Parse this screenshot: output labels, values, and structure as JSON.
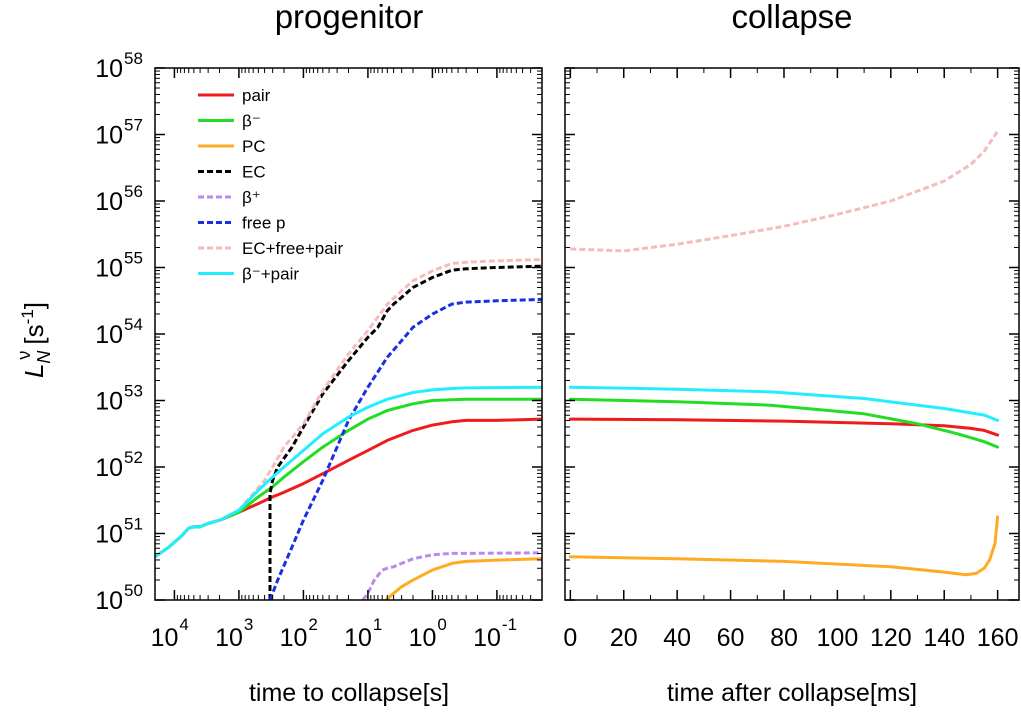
{
  "chart_data": [
    {
      "type": "line",
      "title": "progenitor",
      "xlabel": "time to collapse[s]",
      "ylabel": "L_N^ν [s^-1]",
      "ylabel_parts": {
        "L": "L",
        "sub": "N",
        "sup": "ν",
        "unit_open": "[s",
        "unit_exp": "-1",
        "unit_close": "]"
      },
      "xscale": "log-reversed",
      "xlim": [
        20000,
        0.02
      ],
      "yscale": "log",
      "ylim": [
        1e+50,
        1e+58
      ],
      "x_ticks": [
        {
          "value": 10000,
          "base": "10",
          "exp": "4"
        },
        {
          "value": 1000,
          "base": "10",
          "exp": "3"
        },
        {
          "value": 100,
          "base": "10",
          "exp": "2"
        },
        {
          "value": 10,
          "base": "10",
          "exp": "1"
        },
        {
          "value": 1,
          "base": "10",
          "exp": "0"
        },
        {
          "value": 0.1,
          "base": "10",
          "exp": "-1"
        }
      ],
      "y_ticks": [
        {
          "value": 1e+50,
          "base": "10",
          "exp": "50"
        },
        {
          "value": 1e+51,
          "base": "10",
          "exp": "51"
        },
        {
          "value": 1e+52,
          "base": "10",
          "exp": "52"
        },
        {
          "value": 1e+53,
          "base": "10",
          "exp": "53"
        },
        {
          "value": 1e+54,
          "base": "10",
          "exp": "54"
        },
        {
          "value": 1e+55,
          "base": "10",
          "exp": "55"
        },
        {
          "value": 1e+56,
          "base": "10",
          "exp": "56"
        },
        {
          "value": 1e+57,
          "base": "10",
          "exp": "57"
        },
        {
          "value": 1e+58,
          "base": "10",
          "exp": "58"
        }
      ],
      "legend_placement": "top-left",
      "series": [
        {
          "name": "pair",
          "key": "pair",
          "color": "#ee1c1c",
          "dashed": false,
          "points": [
            [
              20000,
              50.65
            ],
            [
              12000,
              50.8
            ],
            [
              8000,
              50.95
            ],
            [
              6000,
              51.08
            ],
            [
              5000,
              51.1
            ],
            [
              4000,
              51.1
            ],
            [
              3000,
              51.15
            ],
            [
              2000,
              51.2
            ],
            [
              1000,
              51.32
            ],
            [
              500,
              51.45
            ],
            [
              300,
              51.55
            ],
            [
              200,
              51.62
            ],
            [
              100,
              51.75
            ],
            [
              50,
              51.9
            ],
            [
              20,
              52.1
            ],
            [
              10,
              52.25
            ],
            [
              5,
              52.4
            ],
            [
              2,
              52.55
            ],
            [
              1,
              52.63
            ],
            [
              0.5,
              52.68
            ],
            [
              0.3,
              52.7
            ],
            [
              0.1,
              52.7
            ],
            [
              0.02,
              52.72
            ]
          ]
        },
        {
          "name": "β⁻",
          "key": "beta_minus",
          "color": "#22dd22",
          "dashed": false,
          "points": [
            [
              20000,
              50.65
            ],
            [
              12000,
              50.8
            ],
            [
              8000,
              50.95
            ],
            [
              6000,
              51.08
            ],
            [
              5000,
              51.1
            ],
            [
              4000,
              51.1
            ],
            [
              3000,
              51.15
            ],
            [
              2000,
              51.2
            ],
            [
              1000,
              51.32
            ],
            [
              500,
              51.55
            ],
            [
              300,
              51.7
            ],
            [
              200,
              51.85
            ],
            [
              100,
              52.08
            ],
            [
              50,
              52.3
            ],
            [
              20,
              52.55
            ],
            [
              10,
              52.72
            ],
            [
              5,
              52.85
            ],
            [
              2,
              52.95
            ],
            [
              1,
              53.0
            ],
            [
              0.5,
              53.01
            ],
            [
              0.3,
              53.02
            ],
            [
              0.02,
              53.02
            ]
          ]
        },
        {
          "name": "PC",
          "key": "pc",
          "color": "#ffaa22",
          "dashed": false,
          "points": [
            [
              5.5,
              49.98
            ],
            [
              4,
              50.1
            ],
            [
              3,
              50.2
            ],
            [
              2,
              50.3
            ],
            [
              1,
              50.45
            ],
            [
              0.5,
              50.55
            ],
            [
              0.3,
              50.58
            ],
            [
              0.1,
              50.6
            ],
            [
              0.02,
              50.62
            ]
          ]
        },
        {
          "name": "EC",
          "key": "ec",
          "color": "#000000",
          "dashed": true,
          "points": [
            [
              330,
              50.0
            ],
            [
              330,
              51.6
            ],
            [
              300,
              51.8
            ],
            [
              250,
              52.0
            ],
            [
              150,
              52.3
            ],
            [
              100,
              52.6
            ],
            [
              50,
              53.1
            ],
            [
              20,
              53.6
            ],
            [
              10,
              53.95
            ],
            [
              7,
              54.1
            ],
            [
              5,
              54.35
            ],
            [
              4,
              54.45
            ],
            [
              3,
              54.55
            ],
            [
              2,
              54.7
            ],
            [
              1,
              54.85
            ],
            [
              0.5,
              54.96
            ],
            [
              0.3,
              54.98
            ],
            [
              0.1,
              55.0
            ],
            [
              0.02,
              55.02
            ]
          ]
        },
        {
          "name": "β⁺",
          "key": "beta_plus",
          "color": "#bb88ee",
          "dashed": true,
          "points": [
            [
              12,
              50.0
            ],
            [
              10,
              50.1
            ],
            [
              8,
              50.3
            ],
            [
              6,
              50.45
            ],
            [
              5,
              50.48
            ],
            [
              4,
              50.5
            ],
            [
              3,
              50.55
            ],
            [
              2,
              50.62
            ],
            [
              1,
              50.68
            ],
            [
              0.5,
              50.7
            ],
            [
              0.3,
              50.7
            ],
            [
              0.02,
              50.71
            ]
          ]
        },
        {
          "name": "free p",
          "key": "free_p",
          "color": "#1a2ee6",
          "dashed": true,
          "points": [
            [
              330,
              50.0
            ],
            [
              250,
              50.3
            ],
            [
              150,
              50.8
            ],
            [
              100,
              51.2
            ],
            [
              50,
              51.8
            ],
            [
              20,
              52.7
            ],
            [
              10,
              53.2
            ],
            [
              5,
              53.65
            ],
            [
              3,
              53.9
            ],
            [
              2,
              54.1
            ],
            [
              1,
              54.3
            ],
            [
              0.5,
              54.45
            ],
            [
              0.3,
              54.48
            ],
            [
              0.1,
              54.5
            ],
            [
              0.02,
              54.52
            ]
          ]
        },
        {
          "name": "EC+free+pair",
          "key": "ec_free_pair",
          "color": "#f6bcbc",
          "dashed": true,
          "points": [
            [
              1000,
              51.35
            ],
            [
              600,
              51.6
            ],
            [
              400,
              51.8
            ],
            [
              300,
              52.0
            ],
            [
              200,
              52.3
            ],
            [
              100,
              52.65
            ],
            [
              50,
              53.15
            ],
            [
              20,
              53.7
            ],
            [
              10,
              54.05
            ],
            [
              5,
              54.45
            ],
            [
              3,
              54.65
            ],
            [
              2,
              54.8
            ],
            [
              1,
              54.95
            ],
            [
              0.5,
              55.06
            ],
            [
              0.3,
              55.08
            ],
            [
              0.1,
              55.1
            ],
            [
              0.02,
              55.12
            ]
          ]
        },
        {
          "name": "β⁻+pair",
          "key": "beta_minus_pair",
          "color": "#22eeff",
          "dashed": false,
          "points": [
            [
              20000,
              50.65
            ],
            [
              12000,
              50.8
            ],
            [
              8000,
              50.95
            ],
            [
              6000,
              51.08
            ],
            [
              5000,
              51.1
            ],
            [
              4000,
              51.1
            ],
            [
              3000,
              51.15
            ],
            [
              2000,
              51.2
            ],
            [
              1000,
              51.35
            ],
            [
              500,
              51.65
            ],
            [
              300,
              51.85
            ],
            [
              200,
              52.0
            ],
            [
              100,
              52.25
            ],
            [
              50,
              52.5
            ],
            [
              20,
              52.75
            ],
            [
              10,
              52.9
            ],
            [
              5,
              53.02
            ],
            [
              2,
              53.12
            ],
            [
              1,
              53.16
            ],
            [
              0.5,
              53.18
            ],
            [
              0.3,
              53.19
            ],
            [
              0.02,
              53.2
            ]
          ]
        }
      ]
    },
    {
      "type": "line",
      "title": "collapse",
      "xlabel": "time after collapse[ms]",
      "xscale": "linear",
      "xlim": [
        -2,
        168
      ],
      "yscale": "log",
      "ylim": [
        1e+50,
        1e+58
      ],
      "x_ticks": [
        {
          "value": 0,
          "label": "0"
        },
        {
          "value": 20,
          "label": "20"
        },
        {
          "value": 40,
          "label": "40"
        },
        {
          "value": 60,
          "label": "60"
        },
        {
          "value": 80,
          "label": "80"
        },
        {
          "value": 100,
          "label": "100"
        },
        {
          "value": 120,
          "label": "120"
        },
        {
          "value": 140,
          "label": "140"
        },
        {
          "value": 160,
          "label": "160"
        }
      ],
      "series": [
        {
          "name": "pair",
          "key": "pair",
          "color": "#ee1c1c",
          "dashed": false,
          "points": [
            [
              0,
              52.72
            ],
            [
              40,
              52.71
            ],
            [
              80,
              52.69
            ],
            [
              120,
              52.65
            ],
            [
              140,
              52.62
            ],
            [
              150,
              52.58
            ],
            [
              155,
              52.55
            ],
            [
              160,
              52.48
            ]
          ]
        },
        {
          "name": "β⁻",
          "key": "beta_minus",
          "color": "#22dd22",
          "dashed": false,
          "points": [
            [
              0,
              53.02
            ],
            [
              40,
              52.98
            ],
            [
              75,
              52.93
            ],
            [
              110,
              52.8
            ],
            [
              130,
              52.65
            ],
            [
              145,
              52.5
            ],
            [
              155,
              52.38
            ],
            [
              160,
              52.3
            ]
          ]
        },
        {
          "name": "PC",
          "key": "pc",
          "color": "#ffaa22",
          "dashed": false,
          "points": [
            [
              0,
              50.65
            ],
            [
              40,
              50.62
            ],
            [
              80,
              50.58
            ],
            [
              120,
              50.5
            ],
            [
              140,
              50.42
            ],
            [
              148,
              50.38
            ],
            [
              152,
              50.4
            ],
            [
              155,
              50.48
            ],
            [
              157,
              50.6
            ],
            [
              159,
              50.85
            ],
            [
              160,
              51.25
            ]
          ]
        },
        {
          "name": "EC+free+pair",
          "key": "ec_free_pair",
          "color": "#f6bcbc",
          "dashed": true,
          "points": [
            [
              0,
              55.28
            ],
            [
              20,
              55.25
            ],
            [
              40,
              55.35
            ],
            [
              60,
              55.48
            ],
            [
              80,
              55.62
            ],
            [
              100,
              55.8
            ],
            [
              120,
              56.0
            ],
            [
              140,
              56.3
            ],
            [
              150,
              56.55
            ],
            [
              155,
              56.75
            ],
            [
              160,
              57.05
            ]
          ]
        },
        {
          "name": "β⁻+pair",
          "key": "beta_minus_pair",
          "color": "#22eeff",
          "dashed": false,
          "points": [
            [
              0,
              53.2
            ],
            [
              40,
              53.17
            ],
            [
              75,
              53.13
            ],
            [
              110,
              53.03
            ],
            [
              140,
              52.88
            ],
            [
              155,
              52.78
            ],
            [
              160,
              52.7
            ]
          ]
        }
      ]
    }
  ]
}
